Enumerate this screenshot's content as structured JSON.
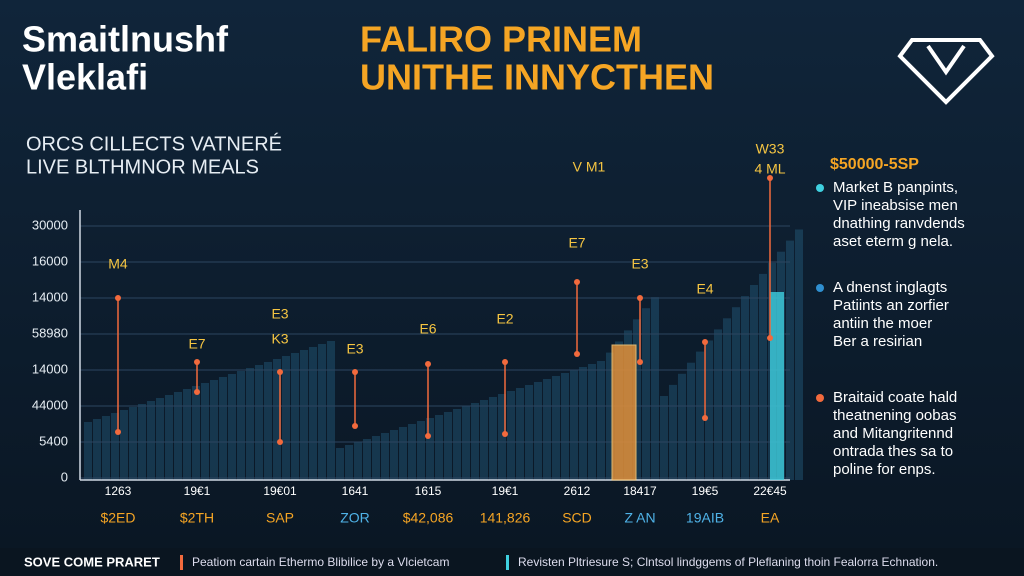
{
  "header": {
    "title_lines": [
      "Smaitlnushf",
      "Vleklafi"
    ],
    "headline_lines": [
      "FALIRO PRINEM",
      "UNITHE INNYCTHEN"
    ]
  },
  "subtitle_lines": [
    "ORCS CILLECTS VATNERÉ",
    "LIVE BLTHMNOR MEALS"
  ],
  "chart": {
    "y_labels": [
      "30000",
      "16000",
      "14000",
      "58980",
      "14000",
      "44000",
      "5400",
      "0"
    ],
    "columns": [
      {
        "year": "1263",
        "label": "$2ED",
        "point_labels": [
          "M4"
        ]
      },
      {
        "year": "19€1",
        "label": "$2TH",
        "point_labels": [
          "E7"
        ]
      },
      {
        "year": "19€01",
        "label": "SAP",
        "point_labels": [
          "E3",
          "K3"
        ]
      },
      {
        "year": "1641",
        "label": "ZOR",
        "point_labels": [
          "E3"
        ]
      },
      {
        "year": "1615",
        "label": "$42,086",
        "point_labels": [
          "E6"
        ]
      },
      {
        "year": "19€1",
        "label": "141,826",
        "point_labels": [
          "E2"
        ]
      },
      {
        "year": "2612",
        "label": "SCD",
        "point_labels": [
          "E7",
          "V M1"
        ]
      },
      {
        "year": "18417",
        "label": "Z AN",
        "point_labels": [
          "E3"
        ]
      },
      {
        "year": "19€5",
        "label": "19AIB",
        "point_labels": [
          "E4"
        ]
      },
      {
        "year": "22€45",
        "label": "EA",
        "point_labels": [
          "W33",
          "4 ML"
        ]
      }
    ]
  },
  "notes": {
    "price": "$50000-5SP",
    "items": [
      {
        "lines": [
          "Marke​t B panpints,",
          "VIP ineabsise men",
          "dnathing ranvdends",
          "aset eterm g nela."
        ]
      },
      {
        "lines": [
          "A dnenst inglagts",
          "Patiints an zorfier",
          "antiin the moer",
          "Ber a resirian"
        ]
      },
      {
        "lines": [
          "Braitaid coate hald",
          "theatnening oobas",
          "and Mitangritennd",
          "ontrada thes sa to",
          "poline for enps."
        ]
      }
    ]
  },
  "footer": {
    "brand": "SOVE COME PRARET",
    "items": [
      "Peatiom cartain Ethermo Blibilice by a Vlcietcam",
      "Revisten Pltriesure S; Clntsol lindggems of Pleflaning thoin Fealorra Echnation."
    ]
  }
}
